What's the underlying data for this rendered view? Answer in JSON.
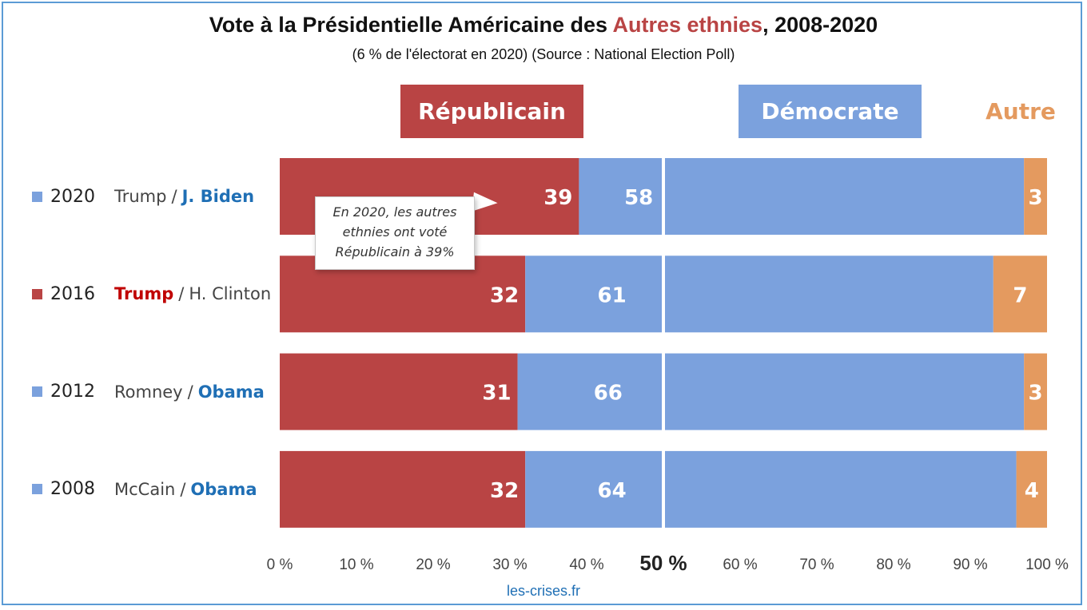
{
  "title": {
    "prefix": "Vote à la Présidentielle Américaine des ",
    "highlight": "Autres ethnies",
    "suffix": ", 2008-2020"
  },
  "subtitle": "(6 % de l'électorat en 2020) (Source : National Election Poll)",
  "legend": {
    "republican": "Républicain",
    "democrat": "Démocrate",
    "other": "Autre"
  },
  "annotation": "En 2020, les autres ethnies ont voté Républicain à 39%",
  "footer": "les-crises.fr",
  "colors": {
    "republican": "#b94444",
    "democrat": "#7ba1dd",
    "other": "#e49a5f",
    "winner_republican": "#c00000",
    "winner_democrat": "#1f6fb5"
  },
  "rows": [
    {
      "year": "2020",
      "republican_candidate": "Trump",
      "democrat_candidate": "J. Biden",
      "winner": "democrat",
      "swatch": "democrat"
    },
    {
      "year": "2016",
      "republican_candidate": "Trump",
      "democrat_candidate": "H. Clinton",
      "winner": "republican",
      "swatch": "republican"
    },
    {
      "year": "2012",
      "republican_candidate": "Romney",
      "democrat_candidate": "Obama",
      "winner": "democrat",
      "swatch": "democrat"
    },
    {
      "year": "2008",
      "republican_candidate": "McCain",
      "democrat_candidate": "Obama",
      "winner": "democrat",
      "swatch": "democrat"
    }
  ],
  "chart_data": {
    "type": "bar",
    "orientation": "horizontal",
    "stacked": true,
    "percent_stacked": true,
    "categories": [
      "2020",
      "2016",
      "2012",
      "2008"
    ],
    "series": [
      {
        "name": "Républicain",
        "values": [
          39,
          32,
          31,
          32
        ]
      },
      {
        "name": "Démocrate",
        "values": [
          58,
          61,
          66,
          64
        ]
      },
      {
        "name": "Autre",
        "values": [
          3,
          7,
          3,
          4
        ]
      }
    ],
    "xlim": [
      0,
      100
    ],
    "xticks": [
      "0 %",
      "10 %",
      "20 %",
      "30 %",
      "40 %",
      "50 %",
      "60 %",
      "70 %",
      "80 %",
      "90 %",
      "100 %"
    ],
    "midline": 50,
    "legend_position": "top"
  }
}
